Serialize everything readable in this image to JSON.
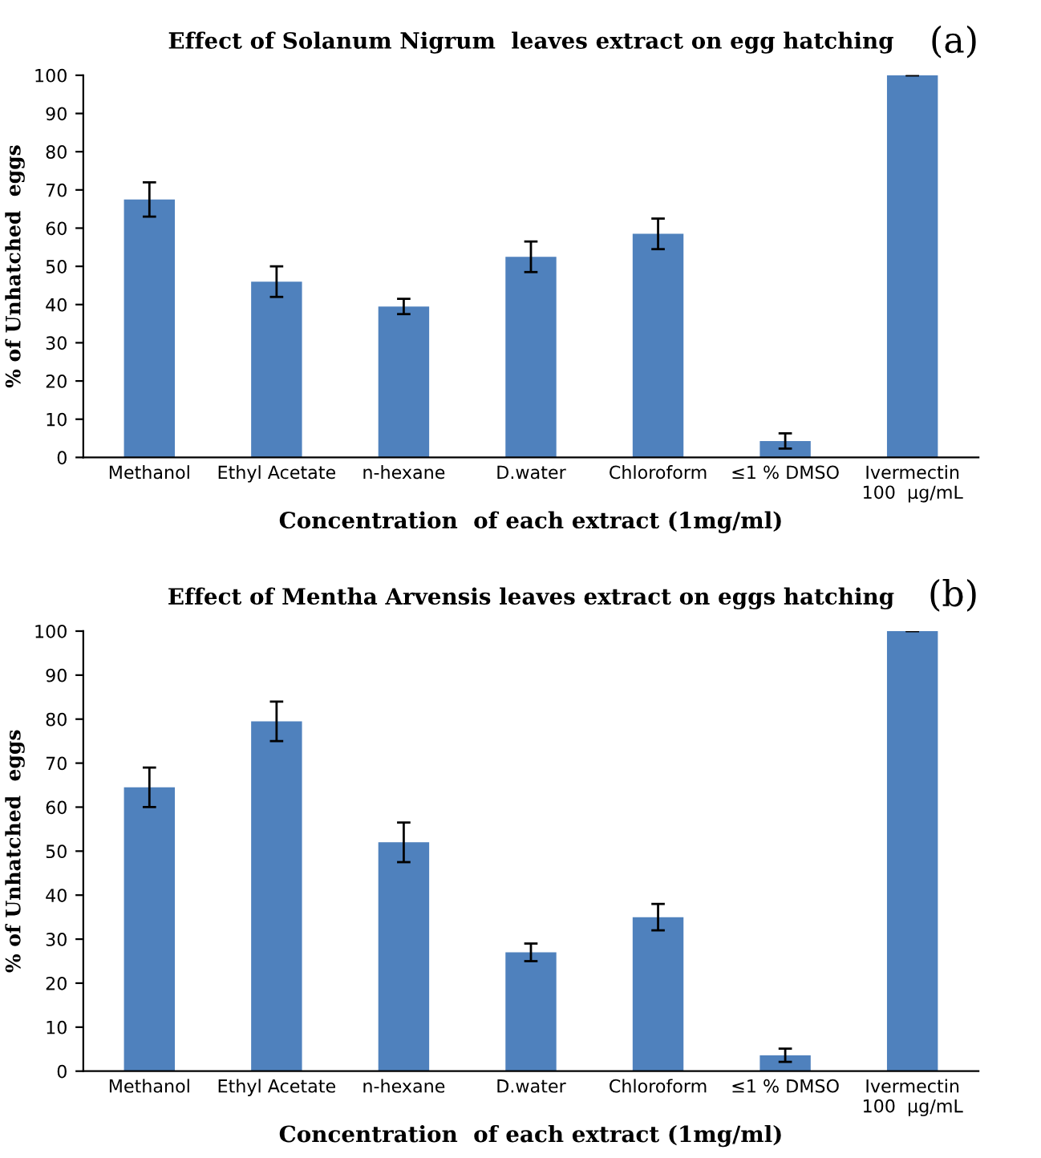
{
  "chart_data": [
    {
      "type": "bar",
      "title": "Effect of Solanum Nigrum  leaves extract on egg hatching",
      "xlabel": "Concentration  of each extract (1mg/ml)",
      "ylabel": "% of Unhatched  eggs",
      "annotations": [
        "(a)"
      ],
      "categories": [
        "Methanol",
        "Ethyl Acetate",
        "n-hexane",
        "D.water",
        "Chloroform",
        "≤1 % DMSO",
        "Ivermectin\n100  µg/mL"
      ],
      "values": [
        67.5,
        46,
        39.5,
        52.5,
        58.5,
        4.3,
        100
      ],
      "errors": [
        4.5,
        4,
        2,
        4,
        4,
        2,
        null
      ],
      "color": "#4f81bd",
      "ylim": [
        0,
        100
      ],
      "yticks": [
        0,
        10,
        20,
        30,
        40,
        50,
        60,
        70,
        80,
        90,
        100
      ],
      "grid": false
    },
    {
      "type": "bar",
      "title": "Effect of Mentha Arvensis leaves extract on eggs hatching",
      "xlabel": "Concentration  of each extract (1mg/ml)",
      "ylabel": "% of Unhatched  eggs",
      "annotations": [
        "(b)"
      ],
      "categories": [
        "Methanol",
        "Ethyl Acetate",
        "n-hexane",
        "D.water",
        "Chloroform",
        "≤1 % DMSO",
        "Ivermectin\n100  µg/mL"
      ],
      "values": [
        64.5,
        79.5,
        52,
        27,
        35,
        3.6,
        100
      ],
      "errors": [
        4.5,
        4.5,
        4.5,
        2,
        3,
        1.5,
        null
      ],
      "color": "#4f81bd",
      "ylim": [
        0,
        100
      ],
      "yticks": [
        0,
        10,
        20,
        30,
        40,
        50,
        60,
        70,
        80,
        90,
        100
      ],
      "grid": false
    }
  ]
}
